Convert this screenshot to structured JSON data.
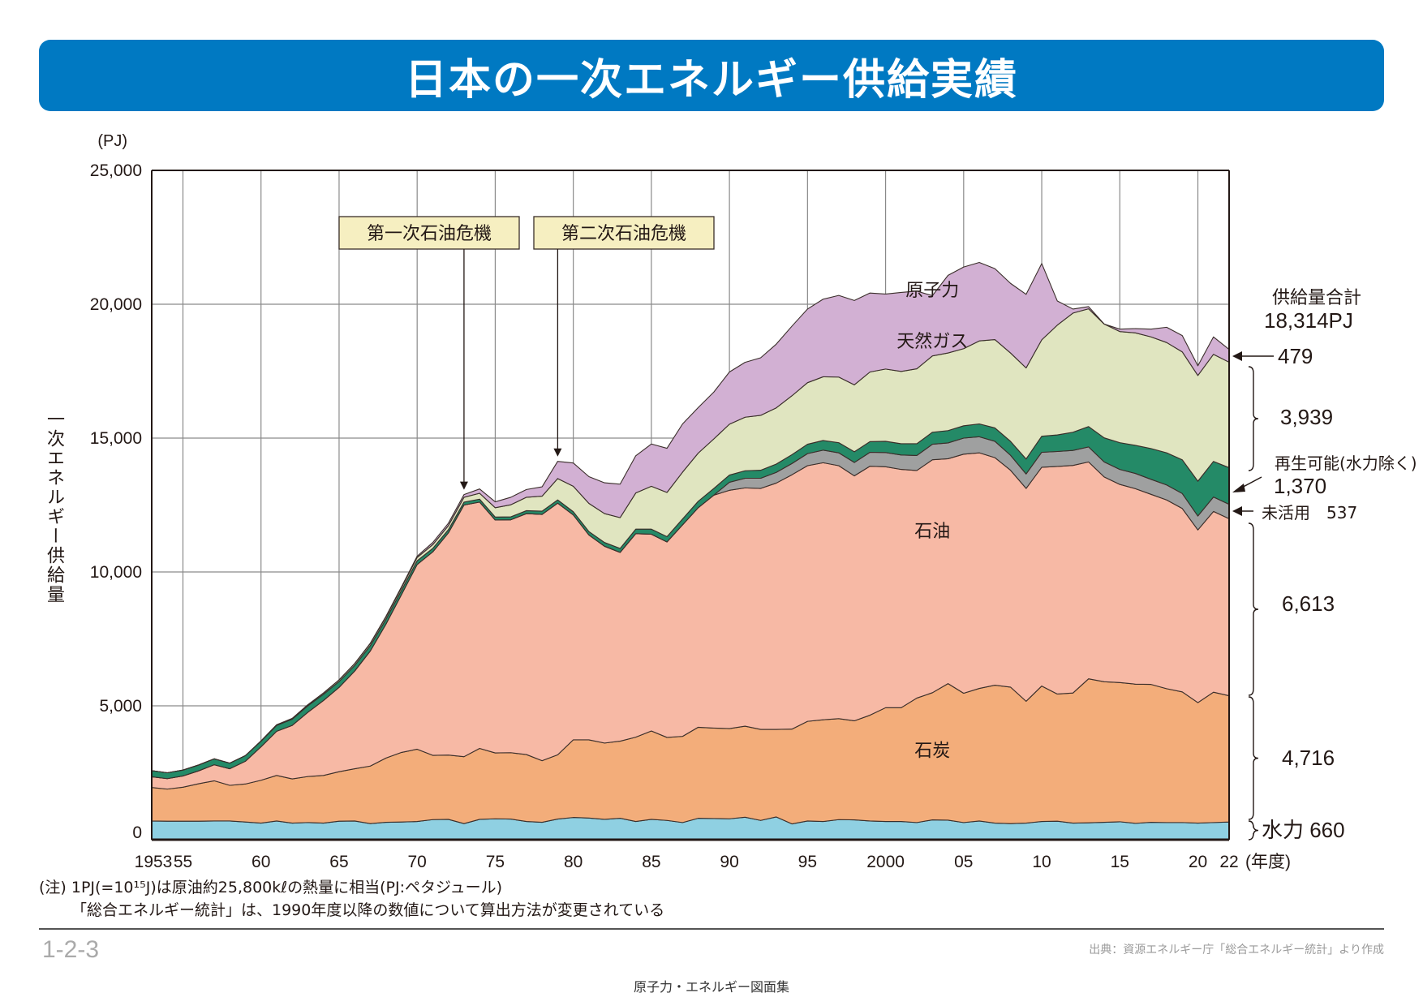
{
  "header": {
    "title": "日本の一次エネルギー供給実績"
  },
  "chart_data": {
    "type": "area",
    "stacked": true,
    "title": "日本の一次エネルギー供給実績",
    "ylabel": "一次エネルギー供給量",
    "yunit": "(PJ)",
    "xunit": "(年度)",
    "ylim": [
      0,
      25000
    ],
    "yticks": [
      0,
      5000,
      10000,
      15000,
      20000,
      25000
    ],
    "ytick_labels": [
      "0",
      "5,000",
      "10,000",
      "15,000",
      "20,000",
      "25,000"
    ],
    "xtick_years": [
      1953,
      1955,
      1960,
      1965,
      1970,
      1975,
      1980,
      1985,
      1990,
      1995,
      2000,
      2005,
      2010,
      2015,
      2020,
      2022
    ],
    "xtick_labels": [
      "1953",
      "55",
      "60",
      "65",
      "70",
      "75",
      "80",
      "85",
      "90",
      "95",
      "2000",
      "05",
      "10",
      "15",
      "20",
      "22"
    ],
    "grid": true,
    "x": [
      1953,
      1954,
      1955,
      1956,
      1957,
      1958,
      1959,
      1960,
      1961,
      1962,
      1963,
      1964,
      1965,
      1966,
      1967,
      1968,
      1969,
      1970,
      1971,
      1972,
      1973,
      1974,
      1975,
      1976,
      1977,
      1978,
      1979,
      1980,
      1981,
      1982,
      1983,
      1984,
      1985,
      1986,
      1987,
      1988,
      1989,
      1990,
      1991,
      1992,
      1993,
      1994,
      1995,
      1996,
      1997,
      1998,
      1999,
      2000,
      2001,
      2002,
      2003,
      2004,
      2005,
      2006,
      2007,
      2008,
      2009,
      2010,
      2011,
      2012,
      2013,
      2014,
      2015,
      2016,
      2017,
      2018,
      2019,
      2020,
      2021,
      2022
    ],
    "series": [
      {
        "name": "水力",
        "key": "hydro",
        "color": "#8fd0e2",
        "values": [
          700,
          690,
          690,
          690,
          700,
          700,
          660,
          620,
          700,
          620,
          640,
          620,
          690,
          700,
          600,
          650,
          660,
          680,
          750,
          760,
          600,
          760,
          780,
          770,
          680,
          650,
          770,
          830,
          810,
          760,
          800,
          680,
          760,
          720,
          640,
          800,
          790,
          780,
          840,
          720,
          850,
          590,
          700,
          680,
          750,
          740,
          700,
          680,
          680,
          640,
          740,
          730,
          640,
          700,
          620,
          600,
          620,
          680,
          690,
          620,
          630,
          650,
          670,
          610,
          650,
          640,
          640,
          620,
          640,
          660
        ]
      },
      {
        "name": "石炭",
        "key": "coal",
        "color": "#f3ad7a",
        "values": [
          1250,
          1200,
          1270,
          1400,
          1500,
          1330,
          1420,
          1600,
          1700,
          1650,
          1720,
          1780,
          1850,
          1950,
          2150,
          2400,
          2600,
          2700,
          2400,
          2400,
          2500,
          2650,
          2460,
          2480,
          2500,
          2300,
          2400,
          2900,
          2920,
          2850,
          2880,
          3150,
          3300,
          3100,
          3220,
          3400,
          3380,
          3370,
          3400,
          3400,
          3270,
          3540,
          3720,
          3800,
          3770,
          3700,
          3950,
          4250,
          4250,
          4650,
          4750,
          5100,
          4830,
          4950,
          5150,
          5100,
          4550,
          5060,
          4750,
          4860,
          5380,
          5250,
          5200,
          5200,
          5150,
          5000,
          4880,
          4500,
          4870,
          4716
        ]
      },
      {
        "name": "石油",
        "key": "oil",
        "color": "#f7b9a5",
        "values": [
          400,
          390,
          420,
          480,
          600,
          620,
          850,
          1250,
          1650,
          2000,
          2400,
          2800,
          3150,
          3650,
          4300,
          5000,
          5900,
          6900,
          7600,
          8300,
          9400,
          9200,
          8700,
          8700,
          9000,
          9200,
          9400,
          8400,
          7650,
          7350,
          7050,
          7600,
          7350,
          7300,
          7900,
          8200,
          8700,
          8900,
          8900,
          9000,
          9200,
          9500,
          9550,
          9600,
          9450,
          9150,
          9300,
          9000,
          8900,
          8500,
          8700,
          8400,
          8930,
          8800,
          8500,
          8100,
          7950,
          8170,
          8500,
          8500,
          8100,
          7650,
          7400,
          7300,
          7100,
          7050,
          6850,
          6450,
          6750,
          6613
        ]
      },
      {
        "name": "未活用",
        "key": "unused",
        "color": "#9fa0a0",
        "values": [
          0,
          0,
          0,
          0,
          0,
          0,
          0,
          0,
          0,
          0,
          0,
          0,
          0,
          0,
          0,
          0,
          0,
          0,
          0,
          0,
          0,
          0,
          0,
          0,
          0,
          0,
          0,
          0,
          0,
          0,
          0,
          0,
          0,
          0,
          0,
          0,
          0,
          300,
          360,
          380,
          400,
          420,
          450,
          470,
          480,
          500,
          520,
          530,
          540,
          560,
          580,
          590,
          600,
          600,
          610,
          560,
          540,
          560,
          560,
          560,
          560,
          560,
          560,
          570,
          560,
          560,
          560,
          520,
          540,
          537
        ]
      },
      {
        "name": "再生可能(水力除く)",
        "key": "renewables",
        "color": "#248a67",
        "values": [
          230,
          220,
          220,
          220,
          220,
          210,
          210,
          210,
          220,
          230,
          240,
          230,
          220,
          210,
          200,
          180,
          160,
          140,
          130,
          120,
          110,
          110,
          110,
          110,
          110,
          120,
          120,
          120,
          130,
          140,
          150,
          170,
          190,
          200,
          220,
          240,
          250,
          270,
          280,
          300,
          310,
          330,
          350,
          360,
          380,
          400,
          400,
          420,
          420,
          440,
          450,
          460,
          460,
          480,
          500,
          520,
          560,
          600,
          620,
          680,
          760,
          900,
          1000,
          1050,
          1150,
          1200,
          1260,
          1300,
          1330,
          1370
        ]
      },
      {
        "name": "天然ガス",
        "key": "gas",
        "color": "#e0e5c0",
        "values": [
          0,
          0,
          0,
          0,
          0,
          0,
          0,
          10,
          20,
          30,
          40,
          50,
          60,
          70,
          80,
          90,
          100,
          120,
          140,
          150,
          180,
          220,
          350,
          450,
          500,
          560,
          800,
          950,
          1050,
          1080,
          1150,
          1350,
          1600,
          1650,
          1750,
          1800,
          1850,
          1900,
          2000,
          2050,
          2100,
          2200,
          2300,
          2380,
          2450,
          2500,
          2600,
          2700,
          2700,
          2800,
          2850,
          2900,
          2880,
          3100,
          3300,
          3300,
          3400,
          3600,
          4100,
          4450,
          4400,
          4250,
          4150,
          4200,
          4170,
          4120,
          4030,
          3950,
          4000,
          3939
        ]
      },
      {
        "name": "原子力",
        "key": "nuclear",
        "color": "#d2b0d3",
        "values": [
          0,
          0,
          0,
          0,
          0,
          0,
          0,
          0,
          0,
          0,
          0,
          0,
          0,
          0,
          10,
          20,
          30,
          50,
          80,
          90,
          100,
          160,
          220,
          280,
          290,
          350,
          640,
          870,
          1000,
          1150,
          1250,
          1390,
          1580,
          1650,
          1800,
          1700,
          1750,
          1950,
          2050,
          2150,
          2380,
          2600,
          2750,
          2900,
          3050,
          3150,
          2950,
          2800,
          2950,
          2900,
          2250,
          2900,
          3050,
          2930,
          2650,
          2600,
          2750,
          2850,
          900,
          150,
          80,
          0,
          90,
          160,
          290,
          570,
          610,
          360,
          650,
          479
        ]
      }
    ],
    "labels_in_plot": {
      "nuclear": "原子力",
      "gas": "天然ガス",
      "oil": "石油",
      "coal": "石炭"
    },
    "annotations": [
      {
        "text": "第一次石油危機",
        "year": 1973
      },
      {
        "text": "第二次石油危機",
        "year": 1979
      }
    ],
    "side_labels": {
      "total_title": "供給量合計",
      "total_value": "18,314PJ",
      "nuclear": "479",
      "gas": "3,939",
      "renewables_title": "再生可能(水力除く)",
      "renewables": "1,370",
      "unused": "未活用　537",
      "oil": "6,613",
      "coal": "4,716",
      "hydro": "水力 660"
    }
  },
  "notes": {
    "line1": "(注) 1PJ(=10¹⁵J)は原油約25,800kℓの熱量に相当(PJ:ペタジュール)",
    "line2": "「総合エネルギー統計」は、1990年度以降の数値について算出方法が変更されている"
  },
  "footer": {
    "page_code": "1-2-3",
    "source": "出典：資源エネルギー庁「総合エネルギー統計」より作成",
    "book": "原子力・エネルギー図面集"
  }
}
